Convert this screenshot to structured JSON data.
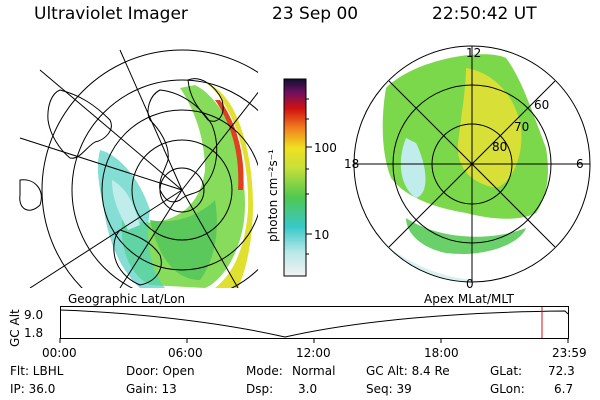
{
  "header": {
    "instrument": "Ultraviolet Imager",
    "date": "23 Sep 00",
    "time": "22:50:42 UT"
  },
  "colorbar": {
    "label": "photon cm⁻²s⁻¹",
    "ticks": [
      "100",
      "10"
    ]
  },
  "polar_plot": {
    "mlt_labels": [
      "12",
      "18",
      "6",
      "0"
    ],
    "lat_labels": [
      "60",
      "70",
      "80"
    ]
  },
  "orbit": {
    "left_label": "Geographic Lat/Lon",
    "right_label": "Apex MLat/MLT",
    "y_axis_label": "GC Alt",
    "y_ticks": [
      "9.0",
      "1.8"
    ],
    "x_ticks": [
      "00:00",
      "06:00",
      "12:00",
      "18:00",
      "23:59"
    ]
  },
  "info": {
    "flt": "Flt: LBHL",
    "door": "Door: Open",
    "mode_label": "Mode:",
    "mode_value": "Normal",
    "gc_alt": "GC Alt: 8.4 Re",
    "glat_label": "GLat:",
    "glat_value": "72.3",
    "ip": "IP: 36.0",
    "gain": "Gain: 13",
    "dsp_label": "Dsp:",
    "dsp_value": "3.0",
    "seq": "Seq: 39",
    "glon_label": "GLon:",
    "glon_value": "6.7"
  },
  "colors": {
    "accent_red": "#d01010",
    "aurora_green": "#6ad63a",
    "aurora_yellow": "#e8e830",
    "aurora_cyan": "#40d0d0"
  }
}
